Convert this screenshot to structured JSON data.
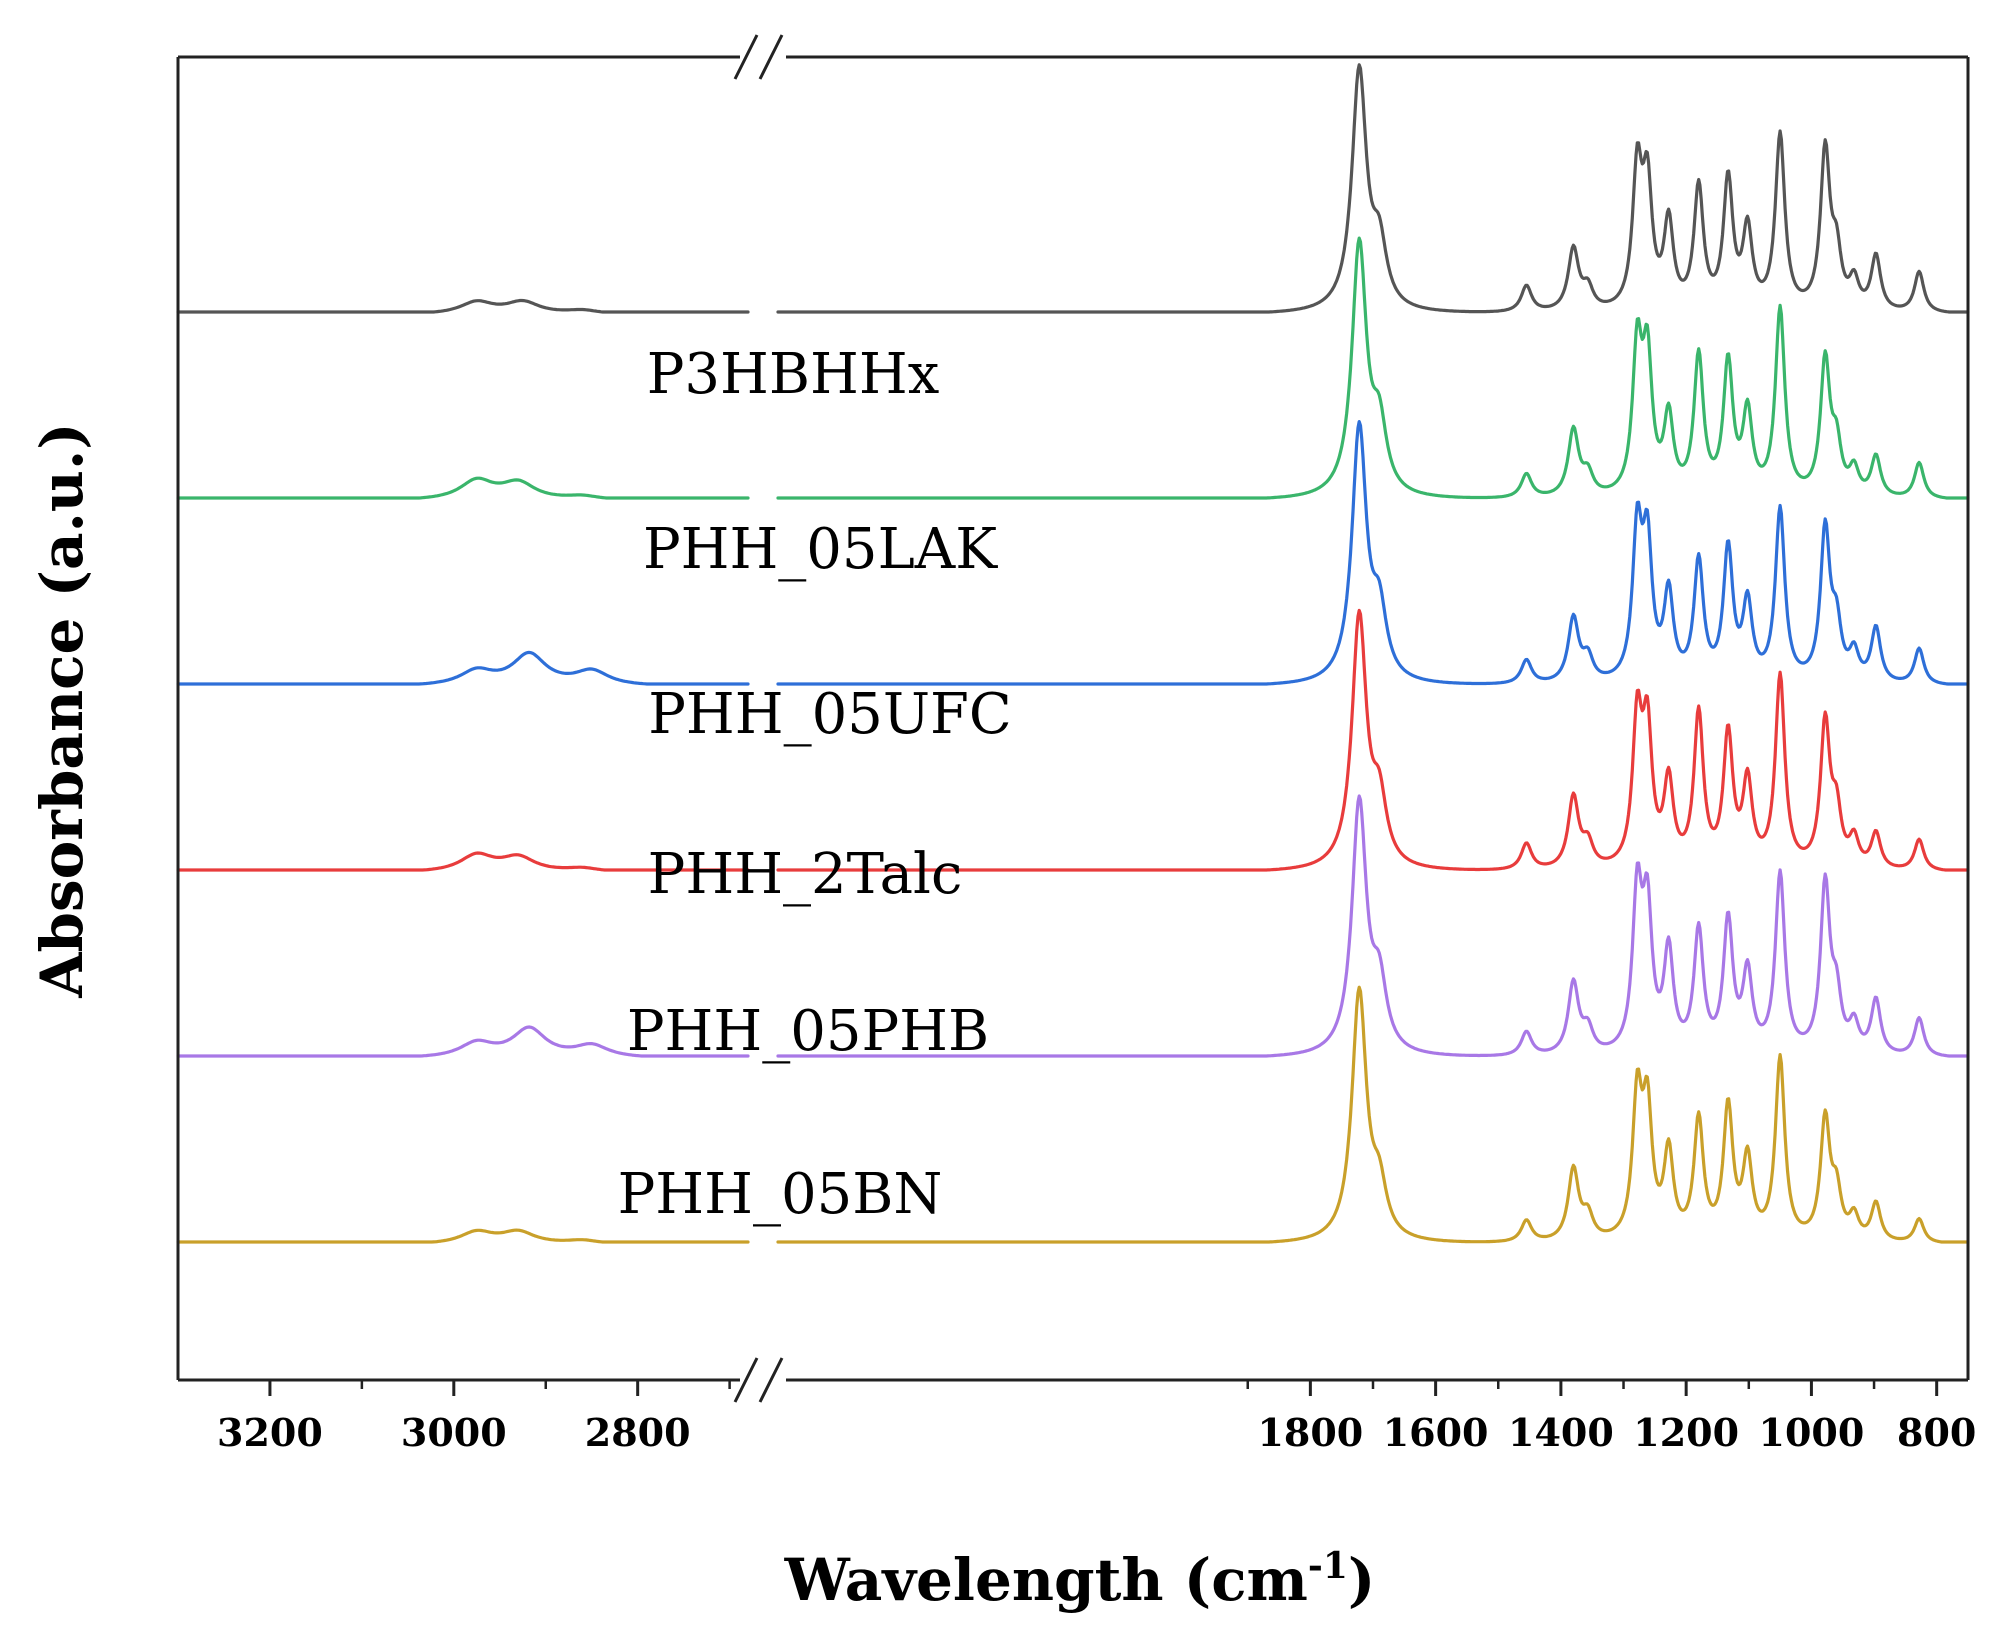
{
  "chart_data": {
    "type": "line",
    "title": "",
    "xlabel": "Wavelength (cm",
    "xlabel_sup": "-1",
    "xlabel_close": ")",
    "ylabel": "Absorbance (a.u.)",
    "x_reversed": true,
    "broken_x_axis": true,
    "x_segments": [
      {
        "x_range": [
          3300,
          2680
        ],
        "ticks": [
          3200,
          3000,
          2800
        ]
      },
      {
        "x_range": [
          2650,
          750
        ],
        "ticks": [
          1800,
          1600,
          1400,
          1200,
          1000,
          800
        ]
      }
    ],
    "x_tick_labels": [
      "3200",
      "3000",
      "2800",
      "1800",
      "1600",
      "1400",
      "1200",
      "1000",
      "800"
    ],
    "y_ticks_shown": false,
    "grid": false,
    "legend": "inline labels",
    "series": [
      {
        "name": "P3HBHHx",
        "color": "#555555",
        "offset": 5,
        "peaks": [
          [
            2975,
            0.05
          ],
          [
            2925,
            0.05
          ],
          [
            2860,
            0.015
          ],
          [
            1722,
            1.0
          ],
          [
            1690,
            0.25
          ],
          [
            1455,
            0.11
          ],
          [
            1380,
            0.26
          ],
          [
            1357,
            0.09
          ],
          [
            1278,
            0.57
          ],
          [
            1262,
            0.5
          ],
          [
            1228,
            0.36
          ],
          [
            1180,
            0.51
          ],
          [
            1133,
            0.54
          ],
          [
            1102,
            0.33
          ],
          [
            1050,
            0.73
          ],
          [
            978,
            0.66
          ],
          [
            960,
            0.22
          ],
          [
            932,
            0.12
          ],
          [
            897,
            0.23
          ],
          [
            828,
            0.17
          ]
        ]
      },
      {
        "name": "PHH_05LAK",
        "color": "#3ab56b",
        "offset": 4,
        "peaks": [
          [
            2975,
            0.08
          ],
          [
            2930,
            0.07
          ],
          [
            2860,
            0.015
          ],
          [
            1722,
            1.05
          ],
          [
            1690,
            0.27
          ],
          [
            1455,
            0.1
          ],
          [
            1380,
            0.28
          ],
          [
            1357,
            0.09
          ],
          [
            1278,
            0.6
          ],
          [
            1262,
            0.55
          ],
          [
            1228,
            0.32
          ],
          [
            1180,
            0.58
          ],
          [
            1133,
            0.55
          ],
          [
            1102,
            0.34
          ],
          [
            1050,
            0.78
          ],
          [
            978,
            0.56
          ],
          [
            960,
            0.2
          ],
          [
            932,
            0.11
          ],
          [
            897,
            0.17
          ],
          [
            828,
            0.15
          ]
        ]
      },
      {
        "name": "PHH_05UFC",
        "color": "#2e6fd8",
        "offset": 3,
        "peaks": [
          [
            2975,
            0.06
          ],
          [
            2918,
            0.13
          ],
          [
            2850,
            0.06
          ],
          [
            1722,
            1.06
          ],
          [
            1690,
            0.27
          ],
          [
            1455,
            0.1
          ],
          [
            1380,
            0.27
          ],
          [
            1357,
            0.1
          ],
          [
            1278,
            0.61
          ],
          [
            1262,
            0.55
          ],
          [
            1228,
            0.36
          ],
          [
            1180,
            0.5
          ],
          [
            1133,
            0.55
          ],
          [
            1102,
            0.32
          ],
          [
            1050,
            0.72
          ],
          [
            978,
            0.63
          ],
          [
            960,
            0.22
          ],
          [
            932,
            0.12
          ],
          [
            897,
            0.23
          ],
          [
            828,
            0.15
          ]
        ]
      },
      {
        "name": "PHH_2Talc",
        "color": "#e83c3c",
        "offset": 2,
        "peaks": [
          [
            2975,
            0.07
          ],
          [
            2930,
            0.06
          ],
          [
            2860,
            0.015
          ],
          [
            1722,
            1.05
          ],
          [
            1690,
            0.26
          ],
          [
            1455,
            0.11
          ],
          [
            1380,
            0.3
          ],
          [
            1357,
            0.1
          ],
          [
            1278,
            0.6
          ],
          [
            1262,
            0.55
          ],
          [
            1228,
            0.35
          ],
          [
            1180,
            0.64
          ],
          [
            1133,
            0.55
          ],
          [
            1102,
            0.35
          ],
          [
            1050,
            0.8
          ],
          [
            978,
            0.6
          ],
          [
            960,
            0.22
          ],
          [
            932,
            0.12
          ],
          [
            897,
            0.15
          ],
          [
            828,
            0.13
          ]
        ]
      },
      {
        "name": "PHH_05PHB",
        "color": "#a878e6",
        "offset": 1,
        "peaks": [
          [
            2975,
            0.06
          ],
          [
            2918,
            0.12
          ],
          [
            2850,
            0.05
          ],
          [
            1722,
            1.05
          ],
          [
            1690,
            0.27
          ],
          [
            1455,
            0.1
          ],
          [
            1380,
            0.3
          ],
          [
            1357,
            0.1
          ],
          [
            1278,
            0.65
          ],
          [
            1262,
            0.57
          ],
          [
            1228,
            0.42
          ],
          [
            1180,
            0.51
          ],
          [
            1133,
            0.55
          ],
          [
            1102,
            0.33
          ],
          [
            1050,
            0.75
          ],
          [
            978,
            0.7
          ],
          [
            960,
            0.22
          ],
          [
            932,
            0.12
          ],
          [
            897,
            0.23
          ],
          [
            828,
            0.16
          ]
        ]
      },
      {
        "name": "PHH_05BN",
        "color": "#c9a02a",
        "offset": 0,
        "peaks": [
          [
            2975,
            0.05
          ],
          [
            2930,
            0.05
          ],
          [
            2860,
            0.015
          ],
          [
            1722,
            1.04
          ],
          [
            1690,
            0.2
          ],
          [
            1455,
            0.09
          ],
          [
            1380,
            0.3
          ],
          [
            1357,
            0.1
          ],
          [
            1278,
            0.58
          ],
          [
            1262,
            0.52
          ],
          [
            1228,
            0.36
          ],
          [
            1180,
            0.5
          ],
          [
            1133,
            0.55
          ],
          [
            1102,
            0.33
          ],
          [
            1050,
            0.76
          ],
          [
            978,
            0.5
          ],
          [
            960,
            0.19
          ],
          [
            932,
            0.1
          ],
          [
            897,
            0.16
          ],
          [
            828,
            0.1
          ]
        ]
      }
    ]
  }
}
